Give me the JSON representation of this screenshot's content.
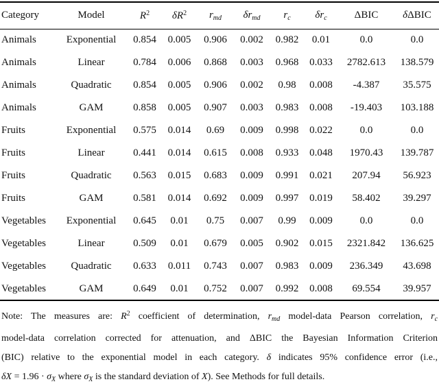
{
  "page": {
    "background_color": "#ffffff",
    "text_color": "#111111",
    "rule_color": "#000000"
  },
  "table": {
    "columns": [
      {
        "key": "category",
        "label": [
          {
            "t": "Category"
          }
        ]
      },
      {
        "key": "model",
        "label": [
          {
            "t": "Model"
          }
        ]
      },
      {
        "key": "r2",
        "label": [
          {
            "t": "R",
            "st": "i"
          },
          {
            "t": "2",
            "st": "sup"
          }
        ]
      },
      {
        "key": "delta-r2",
        "label": [
          {
            "t": "δ",
            "st": "i"
          },
          {
            "t": "R",
            "st": "i"
          },
          {
            "t": "2",
            "st": "sup"
          }
        ]
      },
      {
        "key": "rmd",
        "label": [
          {
            "t": "r",
            "st": "i"
          },
          {
            "t": "md",
            "st": "subi"
          }
        ]
      },
      {
        "key": "delta-rmd",
        "label": [
          {
            "t": "δ",
            "st": "i"
          },
          {
            "t": "r",
            "st": "i"
          },
          {
            "t": "md",
            "st": "subi"
          }
        ]
      },
      {
        "key": "rc",
        "label": [
          {
            "t": "r",
            "st": "i"
          },
          {
            "t": "c",
            "st": "subi"
          }
        ]
      },
      {
        "key": "delta-rc",
        "label": [
          {
            "t": "δ",
            "st": "i"
          },
          {
            "t": "r",
            "st": "i"
          },
          {
            "t": "c",
            "st": "subi"
          }
        ]
      },
      {
        "key": "dbic",
        "label": [
          {
            "t": "ΔBIC"
          }
        ]
      },
      {
        "key": "delta-dbic",
        "label": [
          {
            "t": "δ",
            "st": "i"
          },
          {
            "t": "ΔBIC"
          }
        ]
      }
    ],
    "rows": [
      {
        "cells": [
          "Animals",
          "Exponential",
          "0.854",
          "0.005",
          "0.906",
          "0.002",
          "0.982",
          "0.01",
          "0.0",
          "0.0"
        ]
      },
      {
        "cells": [
          "Animals",
          "Linear",
          "0.784",
          "0.006",
          "0.868",
          "0.003",
          "0.968",
          "0.033",
          "2782.613",
          "138.579"
        ]
      },
      {
        "cells": [
          "Animals",
          "Quadratic",
          "0.854",
          "0.005",
          "0.906",
          "0.002",
          "0.98",
          "0.008",
          "-4.387",
          "35.575"
        ]
      },
      {
        "cells": [
          "Animals",
          "GAM",
          "0.858",
          "0.005",
          "0.907",
          "0.003",
          "0.983",
          "0.008",
          "-19.403",
          "103.188"
        ]
      },
      {
        "cells": [
          "Fruits",
          "Exponential",
          "0.575",
          "0.014",
          "0.69",
          "0.009",
          "0.998",
          "0.022",
          "0.0",
          "0.0"
        ]
      },
      {
        "cells": [
          "Fruits",
          "Linear",
          "0.441",
          "0.014",
          "0.615",
          "0.008",
          "0.933",
          "0.048",
          "1970.43",
          "139.787"
        ]
      },
      {
        "cells": [
          "Fruits",
          "Quadratic",
          "0.563",
          "0.015",
          "0.683",
          "0.009",
          "0.991",
          "0.021",
          "207.94",
          "56.923"
        ]
      },
      {
        "cells": [
          "Fruits",
          "GAM",
          "0.581",
          "0.014",
          "0.692",
          "0.009",
          "0.997",
          "0.019",
          "58.402",
          "39.297"
        ]
      },
      {
        "cells": [
          "Vegetables",
          "Exponential",
          "0.645",
          "0.01",
          "0.75",
          "0.007",
          "0.99",
          "0.009",
          "0.0",
          "0.0"
        ]
      },
      {
        "cells": [
          "Vegetables",
          "Linear",
          "0.509",
          "0.01",
          "0.679",
          "0.005",
          "0.902",
          "0.015",
          "2321.842",
          "136.625"
        ]
      },
      {
        "cells": [
          "Vegetables",
          "Quadratic",
          "0.633",
          "0.011",
          "0.743",
          "0.007",
          "0.983",
          "0.009",
          "236.349",
          "43.698"
        ]
      },
      {
        "cells": [
          "Vegetables",
          "GAM",
          "0.649",
          "0.01",
          "0.752",
          "0.007",
          "0.992",
          "0.008",
          "69.554",
          "39.957"
        ]
      }
    ]
  },
  "note": {
    "lines": [
      {
        "segs": [
          {
            "t": "Note: The measures are: "
          },
          {
            "t": "R",
            "st": "i"
          },
          {
            "t": "2",
            "st": "sup"
          },
          {
            "t": " coefficient of determination, "
          },
          {
            "t": "r",
            "st": "i"
          },
          {
            "t": "md",
            "st": "subi"
          },
          {
            "t": " model-data Pearson correlation, "
          },
          {
            "t": "r",
            "st": "i"
          },
          {
            "t": "c",
            "st": "subi"
          }
        ]
      },
      {
        "segs": [
          {
            "t": "model-data correlation corrected for attenuation, and ΔBIC the Bayesian Information Criterion"
          }
        ]
      },
      {
        "segs": [
          {
            "t": "(BIC) relative to the exponential model in each category. "
          },
          {
            "t": "δ",
            "st": "i"
          },
          {
            "t": " indicates 95% confidence error (i.e.,"
          }
        ]
      },
      {
        "segs": [
          {
            "t": "δX",
            "st": "i"
          },
          {
            "t": " = 1.96 · "
          },
          {
            "t": "σ",
            "st": "i"
          },
          {
            "t": "X",
            "st": "subi"
          },
          {
            "t": " where "
          },
          {
            "t": "σ",
            "st": "i"
          },
          {
            "t": "X",
            "st": "subi"
          },
          {
            "t": " is the standard deviation of "
          },
          {
            "t": "X",
            "st": "i"
          },
          {
            "t": "). See Methods for full details."
          }
        ]
      }
    ]
  }
}
